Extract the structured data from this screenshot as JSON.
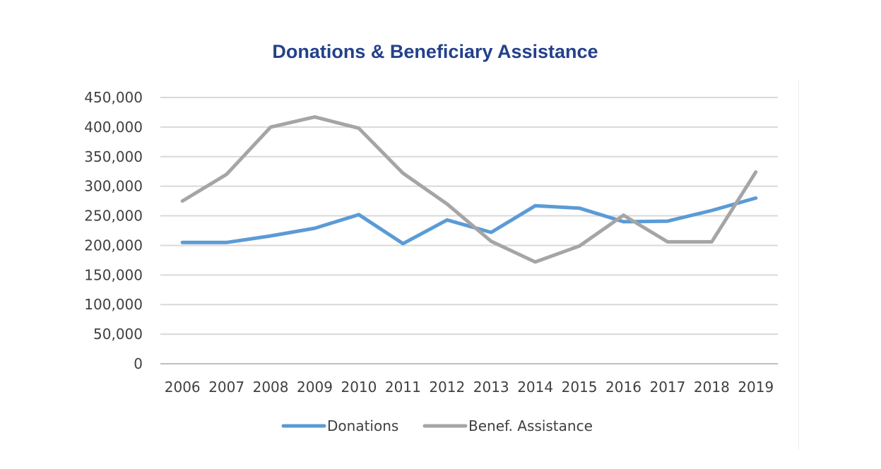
{
  "chart_data": {
    "type": "line",
    "title": "Donations & Beneficiary Assistance",
    "xlabel": "",
    "ylabel": "",
    "categories": [
      "2006",
      "2007",
      "2008",
      "2009",
      "2010",
      "2011",
      "2012",
      "2013",
      "2014",
      "2015",
      "2016",
      "2017",
      "2018",
      "2019"
    ],
    "ylim": [
      0,
      450000
    ],
    "yticks": [
      0,
      50000,
      100000,
      150000,
      200000,
      250000,
      300000,
      350000,
      400000,
      450000
    ],
    "ytick_labels": [
      "0",
      "50,000",
      "100,000",
      "150,000",
      "200,000",
      "250,000",
      "300,000",
      "350,000",
      "400,000",
      "450,000"
    ],
    "grid": true,
    "legend_position": "bottom",
    "series": [
      {
        "name": "Donations",
        "color": "#5b9bd5",
        "values": [
          205000,
          205000,
          216000,
          229000,
          252000,
          203000,
          243000,
          222000,
          267000,
          263000,
          240000,
          241000,
          259000,
          280000
        ]
      },
      {
        "name": "Benef. Assistance",
        "color": "#a5a5a5",
        "values": [
          275000,
          320000,
          400000,
          417000,
          398000,
          322000,
          270000,
          207000,
          172000,
          199000,
          251000,
          206000,
          206000,
          324000
        ]
      }
    ]
  }
}
